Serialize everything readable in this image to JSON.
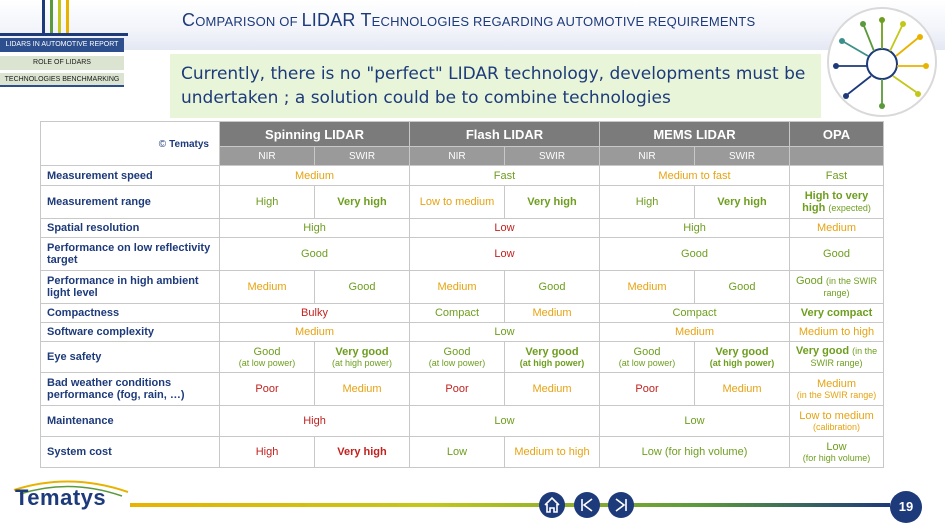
{
  "header": {
    "title_parts": [
      "C",
      "OMPARISON OF ",
      "LIDAR T",
      "ECHNOLOGIES REGARDING AUTOMOTIVE REQUIREMENTS"
    ],
    "nav": [
      "LIDARS IN AUTOMOTIVE REPORT",
      "ROLE OF LIDARS",
      "TECHNOLOGIES BENCHMARKING"
    ]
  },
  "subtitle": "Currently, there is no \"perfect\" LIDAR technology, developments must be undertaken ; a solution could be to combine technologies",
  "table": {
    "corner_copyright": "©",
    "corner_brand": "Tematys",
    "groups": [
      "Spinning LIDAR",
      "Flash LIDAR",
      "MEMS LIDAR",
      "OPA"
    ],
    "subheaders": [
      "NIR",
      "SWIR",
      "NIR",
      "SWIR",
      "NIR",
      "SWIR",
      ""
    ],
    "rows": [
      {
        "label": "Measurement speed",
        "cells": [
          {
            "t": "Medium",
            "c": "o",
            "span": 2
          },
          {
            "t": "Fast",
            "c": "g",
            "span": 2
          },
          {
            "t": "Medium to fast",
            "c": "o",
            "span": 2
          },
          {
            "t": "Fast",
            "c": "g",
            "span": 1
          }
        ]
      },
      {
        "label": "Measurement range",
        "cells": [
          {
            "t": "High",
            "c": "g",
            "span": 1
          },
          {
            "t": "Very high",
            "c": "g",
            "b": true,
            "span": 1
          },
          {
            "t": "Low to medium",
            "c": "o",
            "span": 1
          },
          {
            "t": "Very high",
            "c": "g",
            "b": true,
            "span": 1
          },
          {
            "t": "High",
            "c": "g",
            "span": 1
          },
          {
            "t": "Very high",
            "c": "g",
            "b": true,
            "span": 1
          },
          {
            "t": "High to very high",
            "c": "g",
            "b": true,
            "s": "(expected)",
            "span": 1,
            "inline": true
          }
        ]
      },
      {
        "label": "Spatial resolution",
        "cells": [
          {
            "t": "High",
            "c": "g",
            "span": 2
          },
          {
            "t": "Low",
            "c": "r",
            "span": 2
          },
          {
            "t": "High",
            "c": "g",
            "span": 2
          },
          {
            "t": "Medium",
            "c": "o",
            "span": 1
          }
        ]
      },
      {
        "label": "Performance on low reflectivity target",
        "cells": [
          {
            "t": "Good",
            "c": "g",
            "span": 2
          },
          {
            "t": "Low",
            "c": "r",
            "span": 2
          },
          {
            "t": "Good",
            "c": "g",
            "span": 2
          },
          {
            "t": "Good",
            "c": "g",
            "span": 1
          }
        ]
      },
      {
        "label": "Performance in high ambient light level",
        "cells": [
          {
            "t": "Medium",
            "c": "o",
            "span": 1
          },
          {
            "t": "Good",
            "c": "g",
            "span": 1
          },
          {
            "t": "Medium",
            "c": "o",
            "span": 1
          },
          {
            "t": "Good",
            "c": "g",
            "span": 1
          },
          {
            "t": "Medium",
            "c": "o",
            "span": 1
          },
          {
            "t": "Good",
            "c": "g",
            "span": 1
          },
          {
            "t": "Good",
            "c": "g",
            "s": "(in the SWIR range)",
            "span": 1,
            "inline": true
          }
        ]
      },
      {
        "label": "Compactness",
        "cells": [
          {
            "t": "Bulky",
            "c": "r",
            "span": 2
          },
          {
            "t": "Compact",
            "c": "g",
            "span": 1
          },
          {
            "t": "Medium",
            "c": "o",
            "span": 1
          },
          {
            "t": "Compact",
            "c": "g",
            "span": 2
          },
          {
            "t": "Very compact",
            "c": "g",
            "b": true,
            "span": 1
          }
        ]
      },
      {
        "label": "Software complexity",
        "cells": [
          {
            "t": "Medium",
            "c": "o",
            "span": 2
          },
          {
            "t": "Low",
            "c": "g",
            "span": 2
          },
          {
            "t": "Medium",
            "c": "o",
            "span": 2
          },
          {
            "t": "Medium to high",
            "c": "o",
            "span": 1
          }
        ]
      },
      {
        "label": "Eye safety",
        "cells": [
          {
            "t": "Good",
            "c": "g",
            "s": "(at low power)",
            "span": 1
          },
          {
            "t": "Very good",
            "c": "g",
            "b": true,
            "s": "(at high power)",
            "span": 1
          },
          {
            "t": "Good",
            "c": "g",
            "s": "(at low power)",
            "span": 1
          },
          {
            "t": "Very good",
            "c": "g",
            "b": true,
            "s": "(at high power)",
            "sb": true,
            "span": 1
          },
          {
            "t": "Good",
            "c": "g",
            "s": "(at low power)",
            "span": 1
          },
          {
            "t": "Very good",
            "c": "g",
            "b": true,
            "s": "(at high power)",
            "sb": true,
            "span": 1
          },
          {
            "t": "Very good",
            "c": "g",
            "b": true,
            "s": "(in the SWIR range)",
            "span": 1,
            "inline": true
          }
        ]
      },
      {
        "label": "Bad weather conditions performance (fog, rain, …)",
        "cells": [
          {
            "t": "Poor",
            "c": "r",
            "span": 1
          },
          {
            "t": "Medium",
            "c": "o",
            "span": 1
          },
          {
            "t": "Poor",
            "c": "r",
            "span": 1
          },
          {
            "t": "Medium",
            "c": "o",
            "span": 1
          },
          {
            "t": "Poor",
            "c": "r",
            "span": 1
          },
          {
            "t": "Medium",
            "c": "o",
            "span": 1
          },
          {
            "t": "Medium",
            "c": "o",
            "s": "(in the SWIR range)",
            "span": 1
          }
        ]
      },
      {
        "label": "Maintenance",
        "cells": [
          {
            "t": "High",
            "c": "r",
            "span": 2
          },
          {
            "t": "Low",
            "c": "g",
            "span": 2
          },
          {
            "t": "Low",
            "c": "g",
            "span": 2
          },
          {
            "t": "Low to medium",
            "c": "o",
            "s": "(calibration)",
            "span": 1
          }
        ]
      },
      {
        "label": "System cost",
        "cells": [
          {
            "t": "High",
            "c": "r",
            "span": 1
          },
          {
            "t": "Very high",
            "c": "r",
            "b": true,
            "span": 1
          },
          {
            "t": "Low",
            "c": "g",
            "span": 1
          },
          {
            "t": "Medium to high",
            "c": "o",
            "span": 1
          },
          {
            "t": "Low (for high volume)",
            "c": "g",
            "span": 2
          },
          {
            "t": "Low",
            "c": "g",
            "s": "(for high volume)",
            "span": 1
          }
        ]
      }
    ]
  },
  "footer": {
    "brand": "Tematys",
    "page_number": "19",
    "nav_icons": [
      "home-icon",
      "previous-icon",
      "next-icon"
    ]
  },
  "colors": {
    "navy": "#1d3a7a",
    "green": "#6d9e1e",
    "orange": "#e6a311",
    "red": "#c1221f",
    "header_gray": "#7b7b7b",
    "subtitle_bg": "#e8f5d9"
  }
}
